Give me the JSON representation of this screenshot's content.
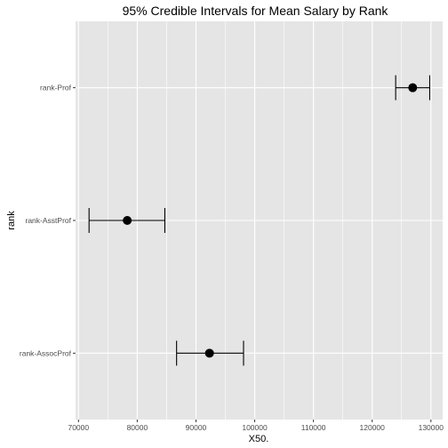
{
  "chart_data": {
    "type": "scatter",
    "title": "95% Credible Intervals for Mean Salary by Rank",
    "xlabel": "X50.",
    "ylabel": "rank",
    "xlim": [
      69500,
      132000
    ],
    "x_ticks": [
      70000,
      80000,
      90000,
      100000,
      110000,
      120000,
      130000
    ],
    "x_tick_labels": [
      "70000",
      "80000",
      "90000",
      "100000",
      "110000",
      "120000",
      "130000"
    ],
    "categories": [
      "rank-AssocProf",
      "rank-AsstProf",
      "rank-Prof"
    ],
    "points": [
      {
        "category": "rank-Prof",
        "estimate": 126900,
        "lower": 124000,
        "upper": 129800
      },
      {
        "category": "rank-AsstProf",
        "estimate": 78300,
        "lower": 71800,
        "upper": 84700
      },
      {
        "category": "rank-AssocProf",
        "estimate": 92300,
        "lower": 86700,
        "upper": 98100
      }
    ],
    "grid": true,
    "background": "#e5e5e5",
    "grid_color": "#ffffff",
    "point_color": "#000000"
  }
}
